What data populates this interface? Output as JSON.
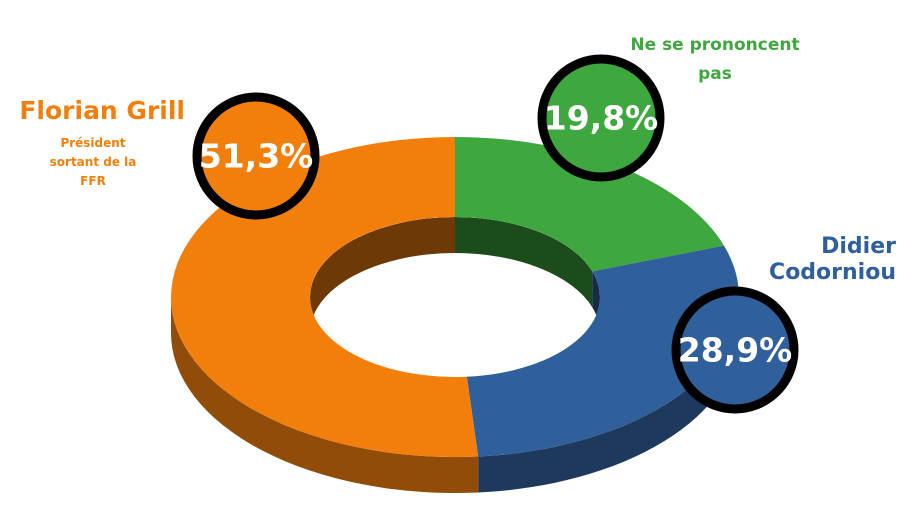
{
  "chart_data": {
    "type": "pie",
    "donut": true,
    "categories": [
      "Florian Grill",
      "Ne se prononcent pas",
      "Didier Codorniou"
    ],
    "values": [
      51.3,
      19.8,
      28.9
    ],
    "value_labels": [
      "51,3%",
      "19,8%",
      "28,9%"
    ],
    "colors": [
      "#f27f0c",
      "#3ea83f",
      "#30609c"
    ],
    "annotations": [
      "Président sortant de la FFR"
    ]
  }
}
